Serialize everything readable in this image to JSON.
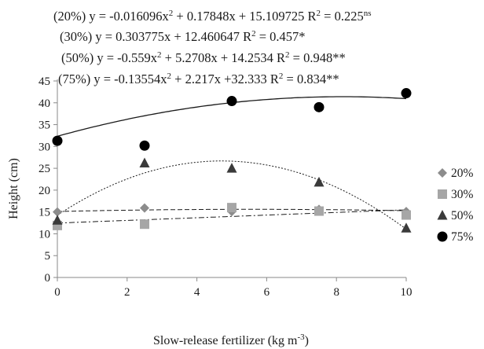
{
  "chart_data": {
    "type": "scatter",
    "equations": [
      {
        "series": "20%",
        "prefix": "(20%) y = -0.016096x",
        "sup": "2",
        "rest": " + 0.17848x + 15.109725 R",
        "sup2": "2",
        "tail": " = 0.225",
        "sig": "ns"
      },
      {
        "series": "30%",
        "prefix": "(30%) y = 0.303775x + 12.460647 R",
        "sup": "2",
        "rest": " = 0.457*",
        "sup2": "",
        "tail": "",
        "sig": ""
      },
      {
        "series": "50%",
        "prefix": "(50%) y = -0.559x",
        "sup": "2",
        "rest": " + 5.2708x + 14.2534 R",
        "sup2": "2",
        "tail": " = 0.948**",
        "sig": ""
      },
      {
        "series": "75%",
        "prefix": "(75%) y = -0.13554x",
        "sup": "2",
        "rest": " + 2.217x +32.333 R",
        "sup2": "2",
        "tail": " = 0.834**",
        "sig": ""
      }
    ],
    "xlabel_main": "Slow-release fertilizer (kg m",
    "xlabel_sup": "-3",
    "xlabel_end": ")",
    "ylabel": "Height (cm)",
    "xlim": [
      0,
      10
    ],
    "ylim": [
      0,
      45
    ],
    "xticks": [
      0,
      2,
      4,
      6,
      8,
      10
    ],
    "yticks": [
      0,
      5,
      10,
      15,
      20,
      25,
      30,
      35,
      40,
      45
    ],
    "grid": false,
    "legend_position": "right",
    "series": [
      {
        "name": "20%",
        "marker": "diamond",
        "color": "#8c8c8c",
        "line_style": "long-dash",
        "x": [
          0,
          2.5,
          5,
          7.5,
          10
        ],
        "y": [
          15,
          15.9,
          15.1,
          15.6,
          15.1
        ]
      },
      {
        "name": "30%",
        "marker": "square",
        "color": "#a6a6a6",
        "line_style": "dash-dot",
        "x": [
          0,
          2.5,
          5,
          7.5,
          10
        ],
        "y": [
          11.9,
          12.2,
          16,
          15.2,
          14.3
        ]
      },
      {
        "name": "50%",
        "marker": "triangle",
        "color": "#3a3a3a",
        "line_style": "dotted",
        "x": [
          0,
          2.5,
          5,
          7.5,
          10
        ],
        "y": [
          13.1,
          26.2,
          25,
          21.8,
          11.3
        ]
      },
      {
        "name": "75%",
        "marker": "circle",
        "color": "#000000",
        "line_style": "solid",
        "x": [
          0,
          2.5,
          5,
          7.5,
          10
        ],
        "y": [
          31.3,
          30.2,
          40.4,
          39,
          42.2
        ]
      }
    ],
    "fits": [
      {
        "series": "20%",
        "a": -0.016096,
        "b": 0.17848,
        "c": 15.109725
      },
      {
        "series": "30%",
        "a": 0,
        "b": 0.303775,
        "c": 12.460647
      },
      {
        "series": "50%",
        "a": -0.559,
        "b": 5.2708,
        "c": 14.2534
      },
      {
        "series": "75%",
        "a": -0.13554,
        "b": 2.217,
        "c": 32.333
      }
    ]
  }
}
